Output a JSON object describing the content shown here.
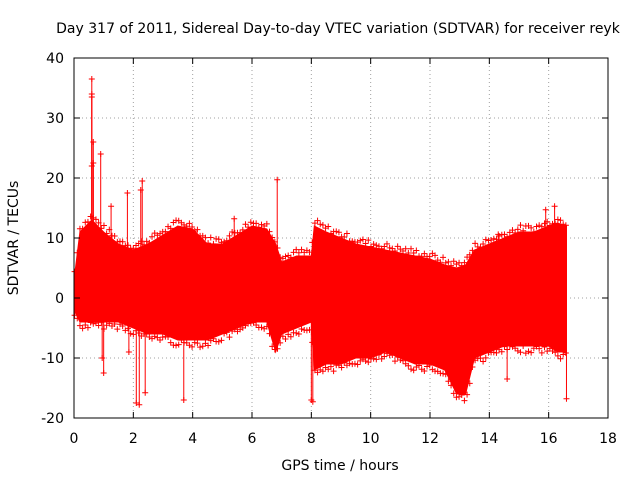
{
  "chart_data": {
    "type": "scatter",
    "title": "Day 317 of 2011, Sidereal Day-to-day VTEC variation (SDTVAR) for receiver reyk",
    "xlabel": "GPS time / hours",
    "ylabel": "SDTVAR / TECUs",
    "xlim": [
      0,
      18
    ],
    "ylim": [
      -20,
      40
    ],
    "xticks": [
      "0",
      "2",
      "4",
      "6",
      "8",
      "10",
      "12",
      "14",
      "16",
      "18"
    ],
    "yticks": [
      "40",
      "30",
      "20",
      "10",
      "0",
      "-10",
      "-20"
    ],
    "grid": true,
    "marker": "plus",
    "series_color": "#ff0000",
    "data_span_hours": [
      0,
      16.6
    ],
    "band": {
      "x": [
        0,
        0.2,
        0.6,
        1.0,
        1.5,
        2.0,
        2.5,
        3.0,
        3.5,
        4.0,
        4.5,
        5.0,
        5.5,
        6.0,
        6.5,
        6.8,
        7.0,
        7.5,
        8.0,
        8.1,
        8.5,
        9.0,
        9.5,
        10.0,
        10.5,
        11.0,
        11.5,
        12.0,
        12.5,
        12.9,
        13.2,
        13.5,
        14.0,
        14.5,
        15.0,
        15.5,
        16.0,
        16.3,
        16.6
      ],
      "upper": [
        3,
        11,
        13,
        11,
        9,
        8,
        9,
        10.5,
        12,
        11.5,
        9,
        9,
        10.5,
        12,
        11.5,
        9,
        6,
        7,
        7,
        12,
        11,
        10,
        9,
        8.5,
        8,
        7.5,
        7,
        6.5,
        5.5,
        5,
        5.5,
        8,
        9,
        10,
        11,
        11,
        12,
        12.5,
        12
      ],
      "lower": [
        -2,
        -4,
        -4,
        -4,
        -4,
        -5,
        -6,
        -6,
        -7,
        -7,
        -7,
        -6,
        -5,
        -4,
        -4,
        -9,
        -6,
        -5,
        -4,
        -12,
        -11,
        -11,
        -10,
        -10,
        -9,
        -10,
        -11,
        -11,
        -12,
        -16,
        -16,
        -10,
        -9,
        -8,
        -8,
        -8,
        -8,
        -9,
        -9
      ]
    },
    "outliers": [
      {
        "x": 0.6,
        "y": 36.5
      },
      {
        "x": 0.6,
        "y": 34
      },
      {
        "x": 0.6,
        "y": 33.5
      },
      {
        "x": 0.65,
        "y": 26
      },
      {
        "x": 0.6,
        "y": 22
      },
      {
        "x": 0.65,
        "y": 22.5
      },
      {
        "x": 0.9,
        "y": 24
      },
      {
        "x": 1.8,
        "y": 17.5
      },
      {
        "x": 2.3,
        "y": 19.5
      },
      {
        "x": 2.25,
        "y": 18
      },
      {
        "x": 5.4,
        "y": 13.2
      },
      {
        "x": 6.85,
        "y": 19.7
      },
      {
        "x": 0.95,
        "y": -10
      },
      {
        "x": 1.0,
        "y": -12.5
      },
      {
        "x": 1.85,
        "y": -9
      },
      {
        "x": 2.1,
        "y": -17.5
      },
      {
        "x": 2.2,
        "y": -17.8
      },
      {
        "x": 2.4,
        "y": -15.8
      },
      {
        "x": 3.7,
        "y": -17
      },
      {
        "x": 8.0,
        "y": -17
      },
      {
        "x": 8.05,
        "y": -17.3
      },
      {
        "x": 14.6,
        "y": -13.5
      },
      {
        "x": 16.6,
        "y": -16.8
      },
      {
        "x": 14.3,
        "y": 10.6
      },
      {
        "x": 15.9,
        "y": 14.7
      },
      {
        "x": 16.2,
        "y": 15.3
      },
      {
        "x": 1.25,
        "y": 15.3
      }
    ]
  }
}
